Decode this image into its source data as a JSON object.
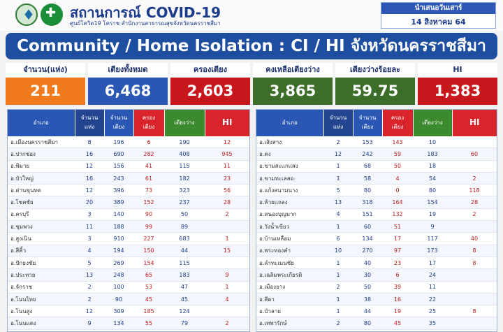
{
  "header": {
    "title": "สถานการณ์ COVID-19",
    "subtitle": "ศูนย์โควิด19 โคราช สำนักงานสาธารณสุขจังหวัดนครราชสีมา",
    "date_line1": "นำเสนอวันเสาร์",
    "date_line2": "14 สิงหาคม 64"
  },
  "banner": "Community / Home Isolation : CI / HI จังหวัดนครราชสีมา",
  "stats": [
    {
      "label": "จำนวน(แห่ง)",
      "value": "211",
      "color": "#f07a1c"
    },
    {
      "label": "เตียงทั้งหมด",
      "value": "6,468",
      "color": "#2b57b4"
    },
    {
      "label": "ครองเตียง",
      "value": "2,603",
      "color": "#c8161d"
    },
    {
      "label": "คงเหลือเตียงว่าง",
      "value": "3,865",
      "color": "#3c6e2a"
    },
    {
      "label": "เตียงว่างร้อยละ",
      "value": "59.75",
      "color": "#3c6e2a"
    },
    {
      "label": "HI",
      "value": "1,383",
      "color": "#c8161d"
    }
  ],
  "table_headers": {
    "district": "อำเภอ",
    "sites_1": "จำนวน",
    "sites_2": "แห่ง",
    "beds_1": "จำนวน",
    "beds_2": "เตียง",
    "occ_1": "ครอง",
    "occ_2": "เตียง",
    "free": "เตียงว่าง",
    "hi": "HI"
  },
  "left_rows": [
    {
      "name": "อ.เมืองนครราชสีมา",
      "sites": "8",
      "beds": "196",
      "occ": "6",
      "free": "190",
      "hi": "12"
    },
    {
      "name": "อ.ปากช่อง",
      "sites": "16",
      "beds": "690",
      "occ": "282",
      "free": "408",
      "hi": "945"
    },
    {
      "name": "อ.พิมาย",
      "sites": "12",
      "beds": "156",
      "occ": "41",
      "free": "115",
      "hi": "11"
    },
    {
      "name": "อ.บัวใหญ่",
      "sites": "16",
      "beds": "243",
      "occ": "61",
      "free": "182",
      "hi": "23"
    },
    {
      "name": "อ.ด่านขุนทด",
      "sites": "12",
      "beds": "396",
      "occ": "73",
      "free": "323",
      "hi": "56"
    },
    {
      "name": "อ.โชคชัย",
      "sites": "20",
      "beds": "389",
      "occ": "152",
      "free": "237",
      "hi": "28"
    },
    {
      "name": "อ.ครบุรี",
      "sites": "3",
      "beds": "140",
      "occ": "90",
      "free": "50",
      "hi": "2"
    },
    {
      "name": "อ.ชุมพวง",
      "sites": "11",
      "beds": "188",
      "occ": "99",
      "free": "89",
      "hi": ""
    },
    {
      "name": "อ.สูงเนิน",
      "sites": "3",
      "beds": "910",
      "occ": "227",
      "free": "683",
      "hi": "1"
    },
    {
      "name": "อ.สีคิ้ว",
      "sites": "4",
      "beds": "194",
      "occ": "150",
      "free": "44",
      "hi": "15"
    },
    {
      "name": "อ.ปักธงชัย",
      "sites": "5",
      "beds": "269",
      "occ": "154",
      "free": "115",
      "hi": ""
    },
    {
      "name": "อ.ประทาย",
      "sites": "13",
      "beds": "248",
      "occ": "65",
      "free": "183",
      "hi": "9"
    },
    {
      "name": "อ.จักราช",
      "sites": "2",
      "beds": "100",
      "occ": "53",
      "free": "47",
      "hi": "1"
    },
    {
      "name": "อ.โนนไทย",
      "sites": "2",
      "beds": "90",
      "occ": "45",
      "free": "45",
      "hi": "4"
    },
    {
      "name": "อ.โนนสูง",
      "sites": "12",
      "beds": "309",
      "occ": "185",
      "free": "124",
      "hi": ""
    },
    {
      "name": "อ.โนนแดง",
      "sites": "9",
      "beds": "134",
      "occ": "55",
      "free": "79",
      "hi": "2"
    }
  ],
  "right_rows": [
    {
      "name": "อ.เสิงสาง",
      "sites": "2",
      "beds": "153",
      "occ": "143",
      "free": "10",
      "hi": ""
    },
    {
      "name": "อ.คง",
      "sites": "12",
      "beds": "242",
      "occ": "59",
      "free": "183",
      "hi": "60"
    },
    {
      "name": "อ.ขามสะแกแสง",
      "sites": "1",
      "beds": "68",
      "occ": "50",
      "free": "18",
      "hi": ""
    },
    {
      "name": "อ.ขามทะเลสอ",
      "sites": "1",
      "beds": "58",
      "occ": "4",
      "free": "54",
      "hi": "2"
    },
    {
      "name": "อ.แก้งสนามนาง",
      "sites": "5",
      "beds": "80",
      "occ": "0",
      "free": "80",
      "hi": "118"
    },
    {
      "name": "อ.ห้วยแถลง",
      "sites": "13",
      "beds": "318",
      "occ": "164",
      "free": "154",
      "hi": "28"
    },
    {
      "name": "อ.หนองบุญมาก",
      "sites": "4",
      "beds": "151",
      "occ": "132",
      "free": "19",
      "hi": "2"
    },
    {
      "name": "อ.วังน้ำเขียว",
      "sites": "1",
      "beds": "60",
      "occ": "51",
      "free": "9",
      "hi": ""
    },
    {
      "name": "อ.บ้านเหลื่อม",
      "sites": "6",
      "beds": "134",
      "occ": "17",
      "free": "117",
      "hi": "40"
    },
    {
      "name": "อ.พระทองคำ",
      "sites": "10",
      "beds": "270",
      "occ": "97",
      "free": "173",
      "hi": "8"
    },
    {
      "name": "อ.ลำทะเมนชัย",
      "sites": "1",
      "beds": "40",
      "occ": "23",
      "free": "17",
      "hi": "8"
    },
    {
      "name": "อ.เฉลิมพระเกียรติ",
      "sites": "1",
      "beds": "30",
      "occ": "6",
      "free": "24",
      "hi": ""
    },
    {
      "name": "อ.เมืองยาง",
      "sites": "2",
      "beds": "50",
      "occ": "39",
      "free": "11",
      "hi": ""
    },
    {
      "name": "อ.สีดา",
      "sites": "1",
      "beds": "38",
      "occ": "16",
      "free": "22",
      "hi": ""
    },
    {
      "name": "อ.บัวลาย",
      "sites": "1",
      "beds": "44",
      "occ": "19",
      "free": "25",
      "hi": "8"
    },
    {
      "name": "อ.เทพารักษ์",
      "sites": "2",
      "beds": "80",
      "occ": "45",
      "free": "35",
      "hi": ""
    }
  ],
  "colors": {
    "header_blue": "#2b57b4",
    "header_red": "#d8242a",
    "header_green": "#3c8a2e",
    "text_blue": "#1a3b8c",
    "text_red": "#c41a1a"
  }
}
